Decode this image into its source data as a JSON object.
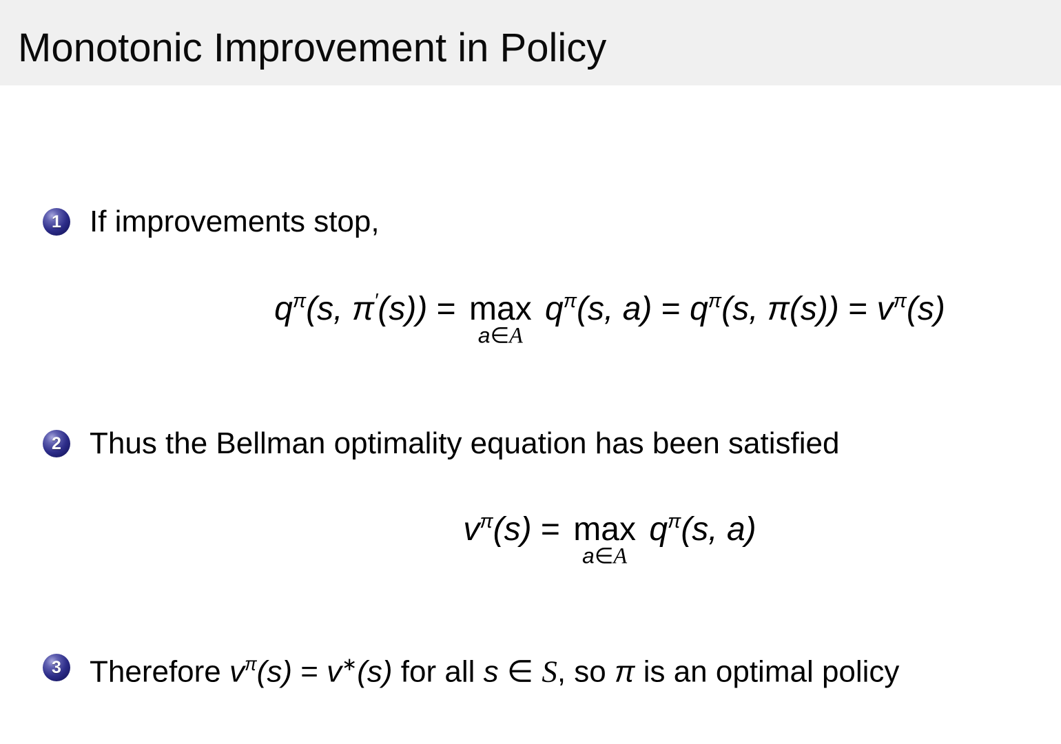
{
  "slide": {
    "title": "Monotonic Improvement in Policy"
  },
  "colors": {
    "header_bg": "#f0f0f0",
    "body_bg": "#ffffff",
    "text": "#000000",
    "ball_dark": "#15155f",
    "ball_mid": "#2c2c88",
    "ball_highlight": "#a8a8dd",
    "ball_number": "#ffffff"
  },
  "bullets": [
    {
      "number": "1",
      "tokens": [
        {
          "t": "r",
          "v": "If improvements stop,"
        }
      ],
      "formula": [
        {
          "t": "i",
          "v": "q"
        },
        {
          "t": "s",
          "v": "π"
        },
        {
          "t": "i",
          "v": "(s, π"
        },
        {
          "t": "s",
          "v": "′"
        },
        {
          "t": "i",
          "v": "(s))"
        },
        {
          "t": "r",
          "v": " = "
        },
        {
          "t": "lim",
          "op": "max",
          "under": [
            {
              "t": "i",
              "v": "a"
            },
            {
              "t": "r",
              "v": "∈"
            },
            {
              "t": "cal",
              "v": "A"
            }
          ]
        },
        {
          "t": "i",
          "v": " q"
        },
        {
          "t": "s",
          "v": "π"
        },
        {
          "t": "i",
          "v": "(s, a)"
        },
        {
          "t": "r",
          "v": " = "
        },
        {
          "t": "i",
          "v": "q"
        },
        {
          "t": "s",
          "v": "π"
        },
        {
          "t": "i",
          "v": "(s, π(s))"
        },
        {
          "t": "r",
          "v": " = "
        },
        {
          "t": "i",
          "v": "v"
        },
        {
          "t": "s",
          "v": "π"
        },
        {
          "t": "i",
          "v": "(s)"
        }
      ]
    },
    {
      "number": "2",
      "tokens": [
        {
          "t": "r",
          "v": "Thus the Bellman optimality equation has been satisfied"
        }
      ],
      "formula": [
        {
          "t": "i",
          "v": "v"
        },
        {
          "t": "s",
          "v": "π"
        },
        {
          "t": "i",
          "v": "(s)"
        },
        {
          "t": "r",
          "v": " = "
        },
        {
          "t": "lim",
          "op": "max",
          "under": [
            {
              "t": "i",
              "v": "a"
            },
            {
              "t": "r",
              "v": "∈"
            },
            {
              "t": "cal",
              "v": "A"
            }
          ]
        },
        {
          "t": "i",
          "v": " q"
        },
        {
          "t": "s",
          "v": "π"
        },
        {
          "t": "i",
          "v": "(s, a)"
        }
      ]
    },
    {
      "number": "3",
      "tokens": [
        {
          "t": "r",
          "v": "Therefore "
        },
        {
          "t": "i",
          "v": "v"
        },
        {
          "t": "s",
          "v": "π"
        },
        {
          "t": "i",
          "v": "(s)"
        },
        {
          "t": "r",
          "v": " = "
        },
        {
          "t": "i",
          "v": "v"
        },
        {
          "t": "s",
          "v": "∗"
        },
        {
          "t": "i",
          "v": "(s)"
        },
        {
          "t": "r",
          "v": " for all "
        },
        {
          "t": "i",
          "v": "s"
        },
        {
          "t": "r",
          "v": " ∈ "
        },
        {
          "t": "cal",
          "v": "S"
        },
        {
          "t": "r",
          "v": ", so "
        },
        {
          "t": "i",
          "v": "π"
        },
        {
          "t": "r",
          "v": " is an optimal policy"
        }
      ],
      "formula": null
    }
  ]
}
